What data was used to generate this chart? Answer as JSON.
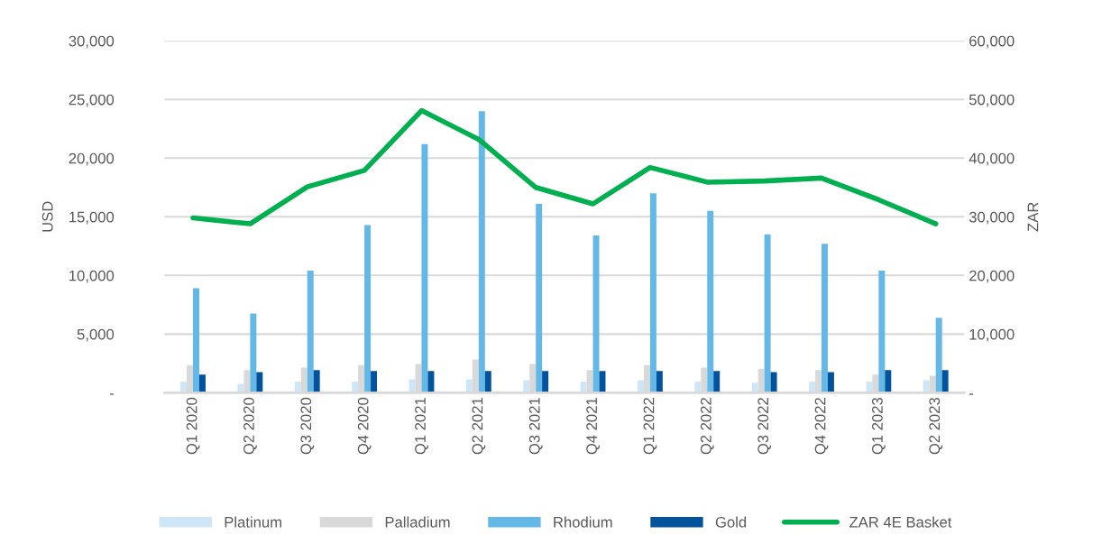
{
  "chart_data": {
    "type": "bar",
    "ylabel": "USD",
    "y2label": "ZAR",
    "categories": [
      "Q1 2020",
      "Q2 2020",
      "Q3 2020",
      "Q4 2020",
      "Q1 2021",
      "Q2 2021",
      "Q3 2021",
      "Q4 2021",
      "Q1 2022",
      "Q2 2022",
      "Q3 2022",
      "Q4 2022",
      "Q1 2023",
      "Q2 2023"
    ],
    "series": [
      {
        "name": "Platinum",
        "color": "#cfe6f7",
        "values": [
          950,
          750,
          950,
          950,
          1170,
          1170,
          1060,
          950,
          1060,
          950,
          860,
          950,
          950,
          1060
        ]
      },
      {
        "name": "Palladium",
        "color": "#d9d9d9",
        "values": [
          2350,
          1940,
          2140,
          2350,
          2450,
          2830,
          2450,
          1940,
          2350,
          2140,
          2040,
          1940,
          1550,
          1450
        ]
      },
      {
        "name": "Rhodium",
        "color": "#63b8e8",
        "values": [
          8900,
          6750,
          10400,
          14300,
          21200,
          24000,
          16100,
          13400,
          17000,
          15500,
          13500,
          12700,
          10400,
          6400
        ]
      },
      {
        "name": "Gold",
        "color": "#02529c",
        "values": [
          1550,
          1750,
          1940,
          1860,
          1860,
          1860,
          1860,
          1860,
          1860,
          1860,
          1750,
          1750,
          1940,
          1940
        ]
      },
      {
        "name": "ZAR 4E Basket",
        "type": "line",
        "axis": "y2",
        "color": "#00b050",
        "values": [
          29800,
          28800,
          35100,
          37900,
          48100,
          43200,
          35000,
          32200,
          38400,
          35900,
          36100,
          36600,
          32900,
          28800
        ]
      }
    ],
    "ylim": [
      0,
      30000
    ],
    "yticks": [
      {
        "value": 0,
        "label": "-"
      },
      {
        "value": 5000,
        "label": "5,000"
      },
      {
        "value": 10000,
        "label": "10,000"
      },
      {
        "value": 15000,
        "label": "15,000"
      },
      {
        "value": 20000,
        "label": "20,000"
      },
      {
        "value": 25000,
        "label": "25,000"
      },
      {
        "value": 30000,
        "label": "30,000"
      }
    ],
    "y2lim": [
      0,
      60000
    ],
    "y2ticks": [
      {
        "value": 0,
        "label": "-"
      },
      {
        "value": 10000,
        "label": "10,000"
      },
      {
        "value": 20000,
        "label": "20,000"
      },
      {
        "value": 30000,
        "label": "30,000"
      },
      {
        "value": 40000,
        "label": "40,000"
      },
      {
        "value": 50000,
        "label": "50,000"
      },
      {
        "value": 60000,
        "label": "60,000"
      }
    ],
    "grid": "y",
    "legend": "bottom"
  }
}
